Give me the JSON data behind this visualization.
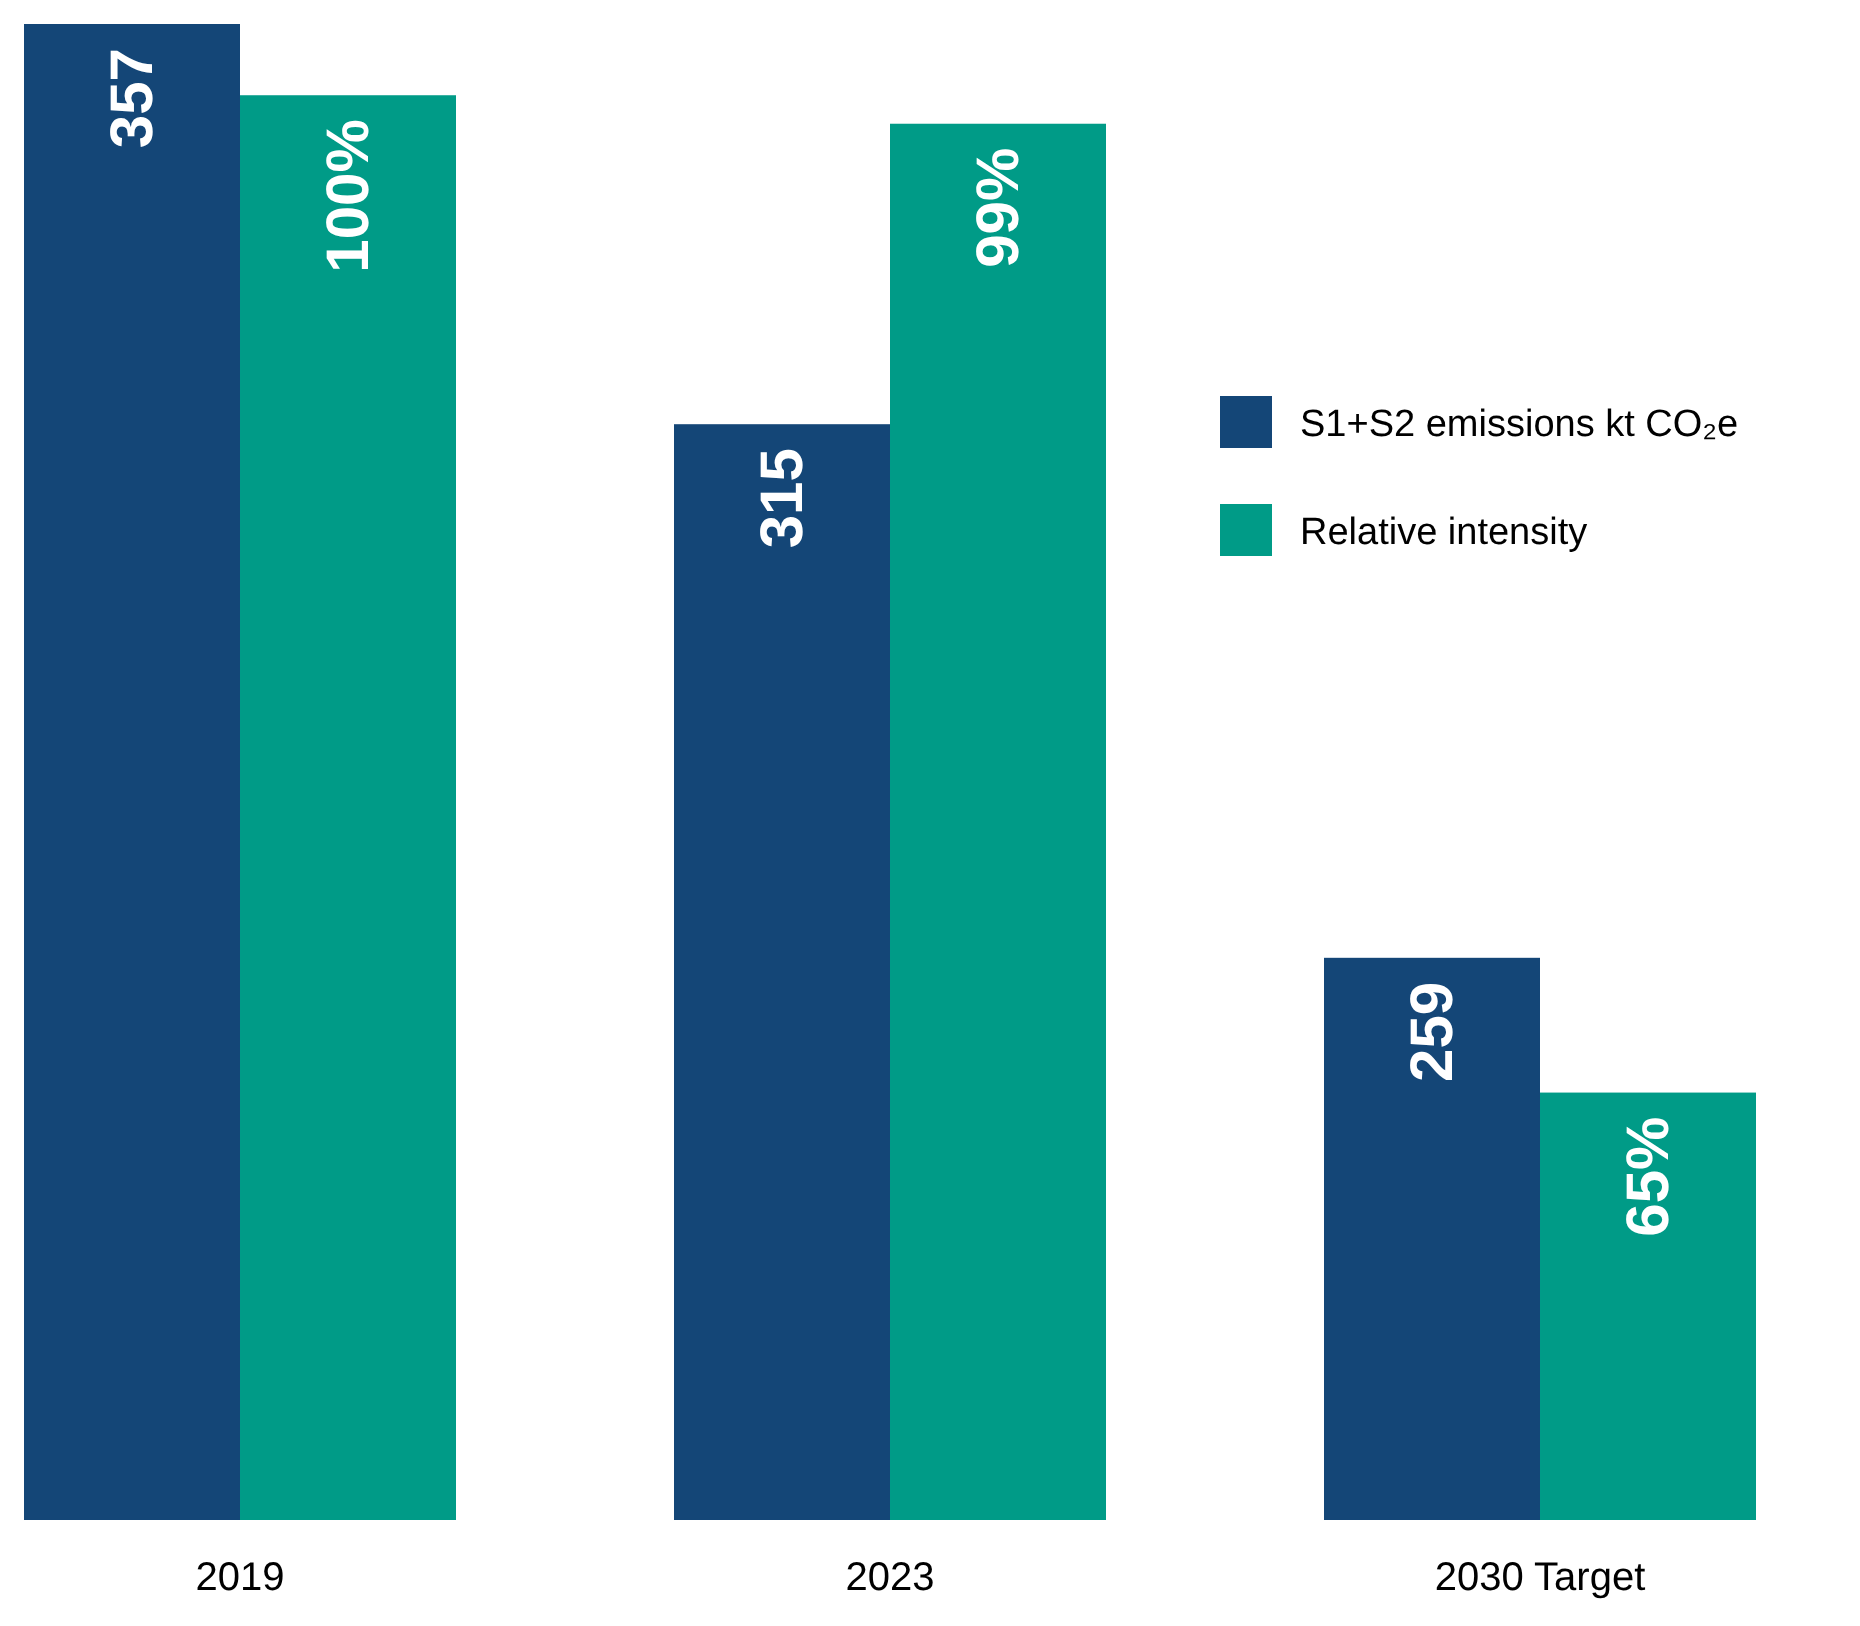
{
  "chart_data": {
    "type": "bar",
    "categories": [
      "2019",
      "2023",
      "2030 Target"
    ],
    "series": [
      {
        "name": "S1+S2 emissions kt CO₂e",
        "color": "#144677",
        "values": [
          357,
          315,
          259
        ]
      },
      {
        "name": "Relative intensity",
        "color": "#009b87",
        "values": [
          100,
          99,
          65
        ],
        "axis": "y2",
        "value_labels": [
          "100%",
          "99%",
          "65%"
        ]
      }
    ],
    "ylim": [
      200,
      357
    ],
    "y2lim": [
      50,
      102.5
    ],
    "tick_labels": "x",
    "data_labels": true,
    "legend": "right",
    "grid": false
  }
}
